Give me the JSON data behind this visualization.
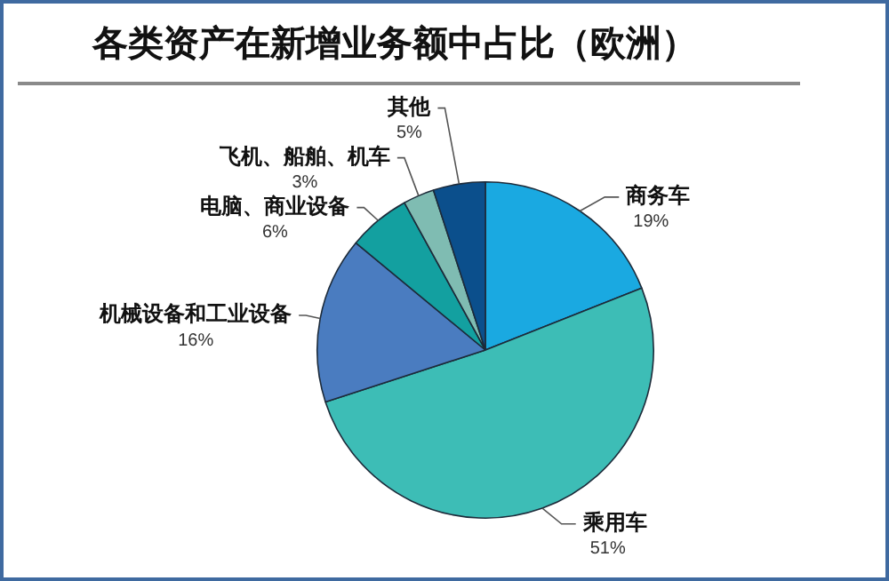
{
  "chart_data": {
    "type": "pie",
    "title": "各类资产在新增业务额中占比（欧洲）",
    "categories": [
      "商务车",
      "乘用车",
      "机械设备和工业设备",
      "电脑、商业设备",
      "飞机、船舶、机车",
      "其他"
    ],
    "values": [
      19,
      51,
      16,
      6,
      3,
      5
    ],
    "value_labels": [
      "19%",
      "51%",
      "16%",
      "6%",
      "3%",
      "5%"
    ],
    "colors": [
      "#1aa9e1",
      "#3dbdb6",
      "#4a7cc0",
      "#13a0a0",
      "#7fbcb2",
      "#0b4f8c"
    ],
    "legend": false
  }
}
